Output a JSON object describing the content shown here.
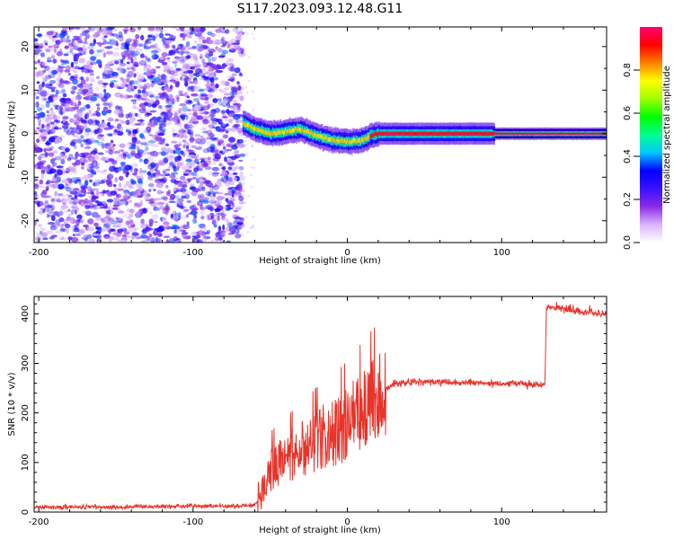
{
  "title": "S117.2023.093.12.48.G11",
  "chart_data": [
    {
      "type": "heatmap",
      "xlabel": "Height of straight line (km)",
      "ylabel": "Frequency (Hz)",
      "xlim": [
        -203,
        168
      ],
      "ylim": [
        -25,
        24.5
      ],
      "xticks": [
        -200,
        -100,
        0,
        100
      ],
      "yticks": [
        -20,
        -10,
        0,
        10,
        20
      ],
      "colorbar": {
        "label": "Normalized spectral amplitude",
        "range": [
          0,
          1
        ],
        "ticks": [
          "0.0",
          "0.2",
          "0.4",
          "0.6",
          "0.8"
        ],
        "colormap": [
          "#ffffff",
          "#d9b6ff",
          "#8a2be2",
          "#3a10ff",
          "#0000ff",
          "#00c8ff",
          "#00ff90",
          "#00ff00",
          "#a0ff00",
          "#ffff00",
          "#ff8000",
          "#ff0000",
          "#ff0070"
        ]
      },
      "noise_region_x": [
        -203,
        -68
      ],
      "signal_track": {
        "x": [
          -68,
          -60,
          -50,
          -40,
          -30,
          -20,
          -10,
          0,
          10,
          15,
          20,
          40,
          60,
          80,
          94,
          100,
          120,
          140,
          168
        ],
        "frequency": [
          2.5,
          1.0,
          0.0,
          0.5,
          1.0,
          -0.5,
          -1.5,
          -1.8,
          -1.5,
          -0.5,
          0,
          0,
          0,
          0,
          0,
          0,
          0,
          0,
          0
        ]
      }
    },
    {
      "type": "line",
      "xlabel": "Height of straight line (km)",
      "ylabel": "SNR (10 * v/v)",
      "xlim": [
        -203,
        168
      ],
      "ylim": [
        0,
        435
      ],
      "xticks": [
        -200,
        -100,
        0,
        100
      ],
      "yticks": [
        0,
        100,
        200,
        300,
        400
      ],
      "series": [
        {
          "color": "#e8332a",
          "x": [
            -203,
            -150,
            -100,
            -70,
            -60,
            -55,
            -50,
            -45,
            -40,
            -35,
            -30,
            -25,
            -20,
            -15,
            -10,
            -5,
            0,
            5,
            10,
            15,
            20,
            25,
            30,
            40,
            50,
            60,
            70,
            80,
            90,
            100,
            110,
            120,
            128,
            129,
            130,
            140,
            150,
            160,
            168
          ],
          "y": [
            10,
            10,
            12,
            12,
            14,
            40,
            90,
            100,
            110,
            120,
            135,
            140,
            150,
            160,
            165,
            175,
            185,
            200,
            215,
            230,
            242,
            250,
            258,
            263,
            262,
            262,
            260,
            262,
            260,
            260,
            260,
            258,
            258,
            412,
            415,
            410,
            405,
            402,
            400
          ]
        }
      ]
    }
  ]
}
